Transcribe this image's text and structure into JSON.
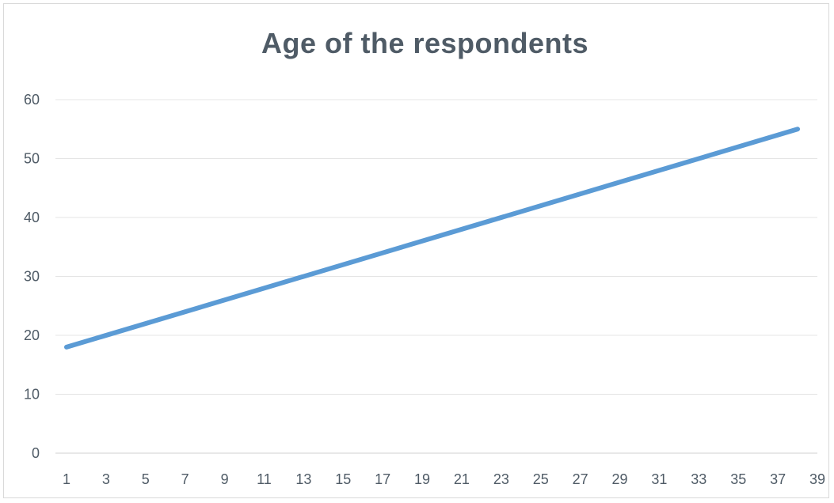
{
  "chart_data": {
    "type": "line",
    "title": "Age of the respondents",
    "xlabel": "",
    "ylabel": "",
    "x_ticks": [
      "1",
      "3",
      "5",
      "7",
      "9",
      "11",
      "13",
      "15",
      "17",
      "19",
      "21",
      "23",
      "25",
      "27",
      "29",
      "31",
      "33",
      "35",
      "37",
      "39"
    ],
    "y_ticks": [
      "0",
      "10",
      "20",
      "30",
      "40",
      "50",
      "60"
    ],
    "xlim": [
      1,
      39
    ],
    "ylim": [
      0,
      60
    ],
    "grid": "horizontal",
    "legend": "none",
    "series": [
      {
        "color": "#5b9bd5",
        "x": [
          1,
          38
        ],
        "y": [
          18,
          55
        ]
      }
    ]
  }
}
